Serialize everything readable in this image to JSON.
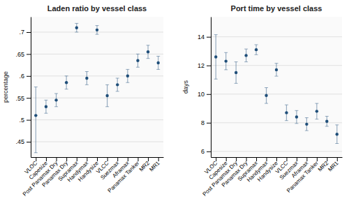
{
  "chart_data": [
    {
      "type": "dot",
      "title": "Laden ratio by vessel class",
      "y_label": "percentage",
      "categories": [
        "VLOC",
        "Capesize",
        "Post Panamax Dry",
        "Panamax Dry",
        "Supramax",
        "Handymax",
        "Handysize",
        "VLCC",
        "Suezmax",
        "Aframax",
        "Panamax Tanker",
        "MR2",
        "MR1"
      ],
      "values": [
        0.51,
        0.53,
        0.545,
        0.585,
        0.71,
        0.595,
        0.705,
        0.555,
        0.58,
        0.6,
        0.635,
        0.655,
        0.63
      ],
      "error_low": [
        0.085,
        0.015,
        0.015,
        0.015,
        0.01,
        0.015,
        0.01,
        0.025,
        0.015,
        0.015,
        0.015,
        0.015,
        0.015
      ],
      "error_high": [
        0.065,
        0.015,
        0.015,
        0.015,
        0.01,
        0.015,
        0.01,
        0.025,
        0.015,
        0.015,
        0.015,
        0.015,
        0.015
      ],
      "ylim": [
        0.415,
        0.735
      ],
      "yticks": [
        {
          "value": 0.45,
          "label": ".45"
        },
        {
          "value": 0.5,
          "label": ".5"
        },
        {
          "value": 0.55,
          "label": ".55"
        },
        {
          "value": 0.6,
          "label": ".6"
        },
        {
          "value": 0.65,
          "label": ".65"
        },
        {
          "value": 0.7,
          "label": ".7"
        }
      ],
      "color": "#1f4e79",
      "grid": true
    },
    {
      "type": "dot",
      "title": "Port time by vessel class",
      "y_label": "days",
      "categories": [
        "VLOC",
        "Capesize",
        "Post Panamax Dry",
        "Panamax Dry",
        "Supramax",
        "Handymax",
        "Handysize",
        "VLCC",
        "Suezmax",
        "Aframax",
        "Panamax Tanker",
        "MR2",
        "MR1"
      ],
      "values": [
        12.6,
        12.3,
        11.5,
        12.7,
        13.1,
        9.9,
        11.7,
        8.7,
        8.4,
        7.9,
        8.8,
        8.1,
        7.2
      ],
      "error_low": [
        1.55,
        0.6,
        0.75,
        0.45,
        0.35,
        0.55,
        0.45,
        0.55,
        0.45,
        0.45,
        0.55,
        0.35,
        0.65
      ],
      "error_high": [
        1.55,
        0.6,
        0.75,
        0.45,
        0.35,
        0.55,
        0.45,
        0.55,
        0.45,
        0.45,
        0.55,
        0.35,
        0.65
      ],
      "ylim": [
        5.6,
        15.4
      ],
      "yticks": [
        6,
        8,
        10,
        12,
        14
      ],
      "color": "#1f4e79",
      "grid": true
    }
  ]
}
